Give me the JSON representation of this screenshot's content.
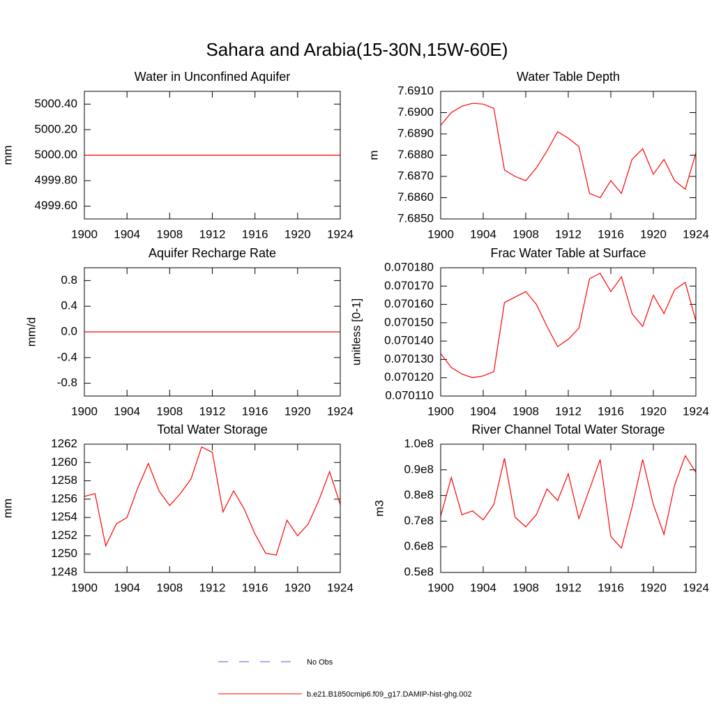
{
  "title": "Sahara and Arabia(15-30N,15W-60E)",
  "legend": [
    {
      "name": "No Obs",
      "color": "#4a5fd0",
      "dash": true
    },
    {
      "name": "b.e21.B1850cmip6.f09_g17.DAMIP-hist-ghg.002",
      "color": "#ff0000",
      "dash": false
    }
  ],
  "chart_data": [
    {
      "type": "line",
      "title": "Water in Unconfined Aquifer",
      "y_label": "mm",
      "color": "#ff0000",
      "x": [
        1900,
        1901,
        1902,
        1903,
        1904,
        1905,
        1906,
        1907,
        1908,
        1909,
        1910,
        1911,
        1912,
        1913,
        1914,
        1915,
        1916,
        1917,
        1918,
        1919,
        1920,
        1921,
        1922,
        1923,
        1924
      ],
      "values": [
        5000,
        5000,
        5000,
        5000,
        5000,
        5000,
        5000,
        5000,
        5000,
        5000,
        5000,
        5000,
        5000,
        5000,
        5000,
        5000,
        5000,
        5000,
        5000,
        5000,
        5000,
        5000,
        5000,
        5000,
        5000
      ],
      "xlim": [
        1900,
        1924
      ],
      "xticks": [
        1900,
        1904,
        1908,
        1912,
        1916,
        1920,
        1924
      ],
      "ylim": [
        4999.5,
        5000.5
      ],
      "yticks": [
        {
          "value": 4999.6,
          "label": "4999.60"
        },
        {
          "value": 4999.8,
          "label": "4999.80"
        },
        {
          "value": 5000,
          "label": "5000.00"
        },
        {
          "value": 5000.2,
          "label": "5000.20"
        },
        {
          "value": 5000.4,
          "label": "5000.40"
        }
      ]
    },
    {
      "type": "line",
      "title": "Water Table Depth",
      "y_label": "m",
      "color": "#ff0000",
      "x": [
        1900,
        1901,
        1902,
        1903,
        1904,
        1905,
        1906,
        1907,
        1908,
        1909,
        1910,
        1911,
        1912,
        1913,
        1914,
        1915,
        1916,
        1917,
        1918,
        1919,
        1920,
        1921,
        1922,
        1923,
        1924
      ],
      "values": [
        7.6894,
        7.69,
        7.6903,
        7.69044,
        7.6904,
        7.6902,
        7.6873,
        7.687,
        7.6868,
        7.6874,
        7.6882,
        7.6891,
        7.6888,
        7.6884,
        7.6862,
        7.686,
        7.6868,
        7.6862,
        7.6878,
        7.6883,
        7.6871,
        7.6878,
        7.6868,
        7.6864,
        7.6881
      ],
      "xlim": [
        1900,
        1924
      ],
      "xticks": [
        1900,
        1904,
        1908,
        1912,
        1916,
        1920,
        1924
      ],
      "ylim": [
        7.685,
        7.691
      ],
      "yticks": [
        {
          "value": 7.685,
          "label": "7.6850"
        },
        {
          "value": 7.686,
          "label": "7.6860"
        },
        {
          "value": 7.687,
          "label": "7.6870"
        },
        {
          "value": 7.688,
          "label": "7.6880"
        },
        {
          "value": 7.689,
          "label": "7.6890"
        },
        {
          "value": 7.69,
          "label": "7.6900"
        },
        {
          "value": 7.691,
          "label": "7.6910"
        }
      ]
    },
    {
      "type": "line",
      "title": "Aquifer Recharge Rate",
      "y_label": "mm/d",
      "color": "#ff0000",
      "x": [
        1900,
        1901,
        1902,
        1903,
        1904,
        1905,
        1906,
        1907,
        1908,
        1909,
        1910,
        1911,
        1912,
        1913,
        1914,
        1915,
        1916,
        1917,
        1918,
        1919,
        1920,
        1921,
        1922,
        1923,
        1924
      ],
      "values": [
        0,
        0,
        0,
        0,
        0,
        0,
        0,
        0,
        0,
        0,
        0,
        0,
        0,
        0,
        0,
        0,
        0,
        0,
        0,
        0,
        0,
        0,
        0,
        0,
        0
      ],
      "xlim": [
        1900,
        1924
      ],
      "xticks": [
        1900,
        1904,
        1908,
        1912,
        1916,
        1920,
        1924
      ],
      "ylim": [
        -1,
        1
      ],
      "yticks": [
        -0.8,
        -0.4,
        {
          "value": 0,
          "label": "0.0"
        },
        0.4,
        0.8
      ]
    },
    {
      "type": "line",
      "title": "Frac Water Table at Surface",
      "y_label": "unitless [0-1]",
      "color": "#ff0000",
      "x": [
        1900,
        1901,
        1902,
        1903,
        1904,
        1905,
        1906,
        1907,
        1908,
        1909,
        1910,
        1911,
        1912,
        1913,
        1914,
        1915,
        1916,
        1917,
        1918,
        1919,
        1920,
        1921,
        1922,
        1923,
        1924
      ],
      "values": [
        0.0701332,
        0.0701256,
        0.070122,
        0.07012,
        0.070121,
        0.0701233,
        0.070161,
        0.070164,
        0.070167,
        0.07016,
        0.070148,
        0.070137,
        0.070141,
        0.070147,
        0.070174,
        0.070177,
        0.070167,
        0.070175,
        0.070155,
        0.070148,
        0.070165,
        0.070155,
        0.070168,
        0.070172,
        0.070151
      ],
      "xlim": [
        1900,
        1924
      ],
      "xticks": [
        1900,
        1904,
        1908,
        1912,
        1916,
        1920,
        1924
      ],
      "ylim": [
        0.07011,
        0.07018
      ],
      "yticks": [
        {
          "value": 0.07011,
          "label": "0.070110"
        },
        {
          "value": 0.07012,
          "label": "0.070120"
        },
        {
          "value": 0.07013,
          "label": "0.070130"
        },
        {
          "value": 0.07014,
          "label": "0.070140"
        },
        {
          "value": 0.07015,
          "label": "0.070150"
        },
        {
          "value": 0.07016,
          "label": "0.070160"
        },
        {
          "value": 0.07017,
          "label": "0.070170"
        },
        {
          "value": 0.07018,
          "label": "0.070180"
        }
      ]
    },
    {
      "type": "line",
      "title": "Total Water Storage",
      "y_label": "mm",
      "color": "#ff0000",
      "x": [
        1900,
        1901,
        1902,
        1903,
        1904,
        1905,
        1906,
        1907,
        1908,
        1909,
        1910,
        1911,
        1912,
        1913,
        1914,
        1915,
        1916,
        1917,
        1918,
        1919,
        1920,
        1921,
        1922,
        1923,
        1924
      ],
      "values": [
        1256.3,
        1256.6,
        1250.9,
        1253.3,
        1254.0,
        1257.2,
        1259.9,
        1256.9,
        1255.3,
        1256.6,
        1258.2,
        1261.7,
        1261.1,
        1254.6,
        1256.9,
        1254.9,
        1252.2,
        1250.1,
        1249.9,
        1253.7,
        1252.0,
        1253.3,
        1255.9,
        1259.0,
        1255.4
      ],
      "xlim": [
        1900,
        1924
      ],
      "xticks": [
        1900,
        1904,
        1908,
        1912,
        1916,
        1920,
        1924
      ],
      "ylim": [
        1248,
        1262
      ],
      "yticks": [
        1248,
        1250,
        1252,
        1254,
        1256,
        1258,
        1260,
        1262
      ]
    },
    {
      "type": "line",
      "title": "River Channel Total Water Storage",
      "y_label": "m3",
      "color": "#ff0000",
      "x": [
        1900,
        1901,
        1902,
        1903,
        1904,
        1905,
        1906,
        1907,
        1908,
        1909,
        1910,
        1911,
        1912,
        1913,
        1914,
        1915,
        1916,
        1917,
        1918,
        1919,
        1920,
        1921,
        1922,
        1923,
        1924
      ],
      "values": [
        72000000,
        87000000,
        72500000,
        74000000,
        70500000,
        76500000,
        94500000,
        71500000,
        67800000,
        72500000,
        82500000,
        78000000,
        88500000,
        71000000,
        82500000,
        94000000,
        64000000,
        59500000,
        75500000,
        94000000,
        76500000,
        64800000,
        84000000,
        95500000,
        89000000
      ],
      "xlim": [
        1900,
        1924
      ],
      "xticks": [
        1900,
        1904,
        1908,
        1912,
        1916,
        1920,
        1924
      ],
      "ylim": [
        50000000,
        100000000
      ],
      "yticks": [
        {
          "value": 50000000,
          "label": "0.5e8"
        },
        {
          "value": 60000000,
          "label": "0.6e8"
        },
        {
          "value": 70000000,
          "label": "0.7e8"
        },
        {
          "value": 80000000,
          "label": "0.8e8"
        },
        {
          "value": 90000000,
          "label": "0.9e8"
        },
        {
          "value": 100000000,
          "label": "1.0e8"
        }
      ]
    }
  ]
}
